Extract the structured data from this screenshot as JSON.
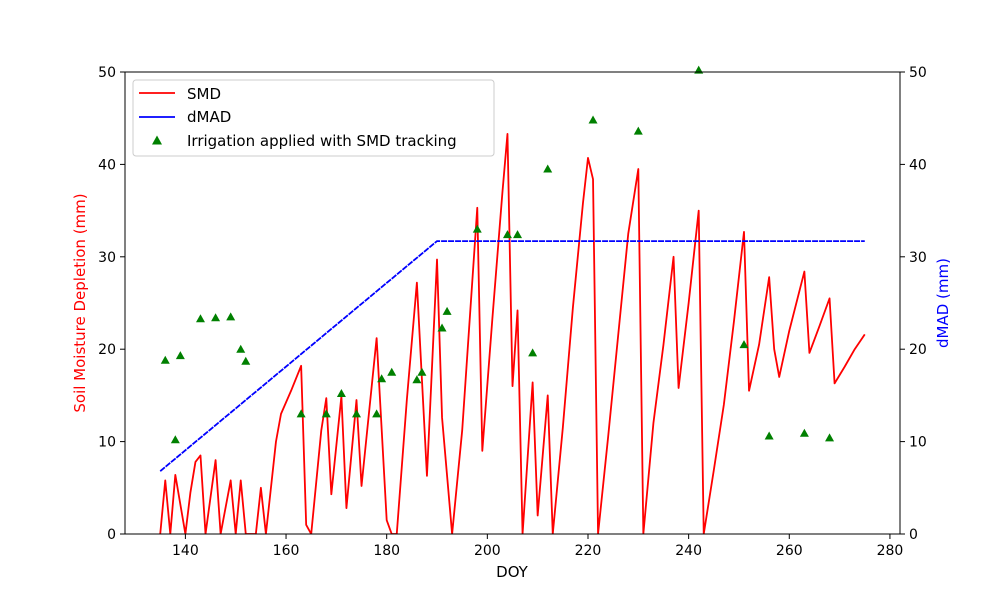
{
  "chart_data": {
    "type": "line",
    "xlabel": "DOY",
    "ylabel": "Soil Moisture Depletion (mm)",
    "ylabel_right": "dMAD (mm)",
    "xlim": [
      128,
      282
    ],
    "ylim": [
      0,
      50
    ],
    "ylim_right": [
      0,
      50
    ],
    "x_ticks": [
      140,
      160,
      180,
      200,
      220,
      240,
      260,
      280
    ],
    "y_ticks": [
      0,
      10,
      20,
      30,
      40,
      50
    ],
    "y_ticks_right": [
      0,
      10,
      20,
      30,
      40,
      50
    ],
    "grid": false,
    "legend_position": "upper-left",
    "colors": {
      "smd": "#ff0000",
      "dmad": "#0000ff",
      "irrigation": "#008000",
      "ylabel": "#ff0000",
      "ylabel_right": "#0000ff"
    },
    "series": [
      {
        "name": "SMD",
        "type": "line",
        "x": [
          135,
          136,
          137,
          138,
          140,
          141,
          142,
          143,
          144,
          146,
          147,
          149,
          150,
          151,
          152,
          154,
          155,
          156,
          158,
          159,
          161,
          163,
          164,
          165,
          167,
          168,
          169,
          171,
          172,
          174,
          175,
          178,
          180,
          181,
          182,
          184,
          186,
          188,
          190,
          191,
          193,
          195,
          198,
          199,
          201,
          203,
          204,
          205,
          206,
          207,
          209,
          210,
          212,
          213,
          215,
          217,
          219,
          220,
          221,
          222,
          224,
          226,
          228,
          230,
          231,
          233,
          235,
          237,
          238,
          240,
          242,
          243,
          245,
          247,
          249,
          251,
          252,
          254,
          256,
          257,
          258,
          260,
          263,
          264,
          266,
          268,
          269,
          271,
          273,
          275
        ],
        "values": [
          0,
          5.8,
          0,
          6.4,
          0,
          4.5,
          7.8,
          8.5,
          0,
          8,
          0,
          5.8,
          0,
          5.8,
          0,
          0,
          5,
          0,
          10,
          13,
          15.5,
          18.2,
          1,
          0,
          11.2,
          14.7,
          4.3,
          14.9,
          2.8,
          14.5,
          5.2,
          21.2,
          1.5,
          0,
          0,
          14.5,
          27.2,
          6.3,
          29.7,
          12.6,
          0,
          11.2,
          35.3,
          9,
          23.3,
          37,
          43.3,
          16,
          24.2,
          0,
          16.4,
          2,
          15,
          0,
          11.5,
          24.5,
          35.8,
          40.7,
          38.4,
          0,
          10.5,
          21.5,
          32.5,
          39.5,
          0,
          12,
          20.5,
          30,
          15.8,
          25,
          35,
          0,
          6.9,
          14,
          23,
          32.7,
          15.5,
          20.5,
          27.8,
          20,
          17,
          22,
          28.4,
          19.6,
          22.5,
          25.5,
          16.3,
          18.1,
          20,
          21.6
        ]
      },
      {
        "name": "dMAD",
        "type": "line",
        "x": [
          135,
          190,
          275
        ],
        "values": [
          6.8,
          31.7,
          31.7
        ]
      },
      {
        "name": "Irrigation applied with SMD tracking",
        "type": "scatter",
        "x": [
          136,
          138,
          139,
          143,
          146,
          149,
          151,
          152,
          163,
          168,
          171,
          174,
          178,
          179,
          181,
          186,
          187,
          191,
          192,
          198,
          204,
          206,
          209,
          212,
          221,
          230,
          242,
          251,
          256,
          263,
          268
        ],
        "values": [
          18.8,
          10.2,
          19.3,
          23.3,
          23.4,
          23.5,
          20,
          18.7,
          13,
          13,
          15.2,
          13,
          13,
          16.8,
          17.5,
          16.7,
          17.5,
          22.3,
          24.1,
          33,
          32.4,
          32.4,
          19.6,
          39.5,
          44.8,
          43.6,
          50.2,
          20.5,
          10.6,
          10.9,
          10.4
        ]
      }
    ]
  }
}
